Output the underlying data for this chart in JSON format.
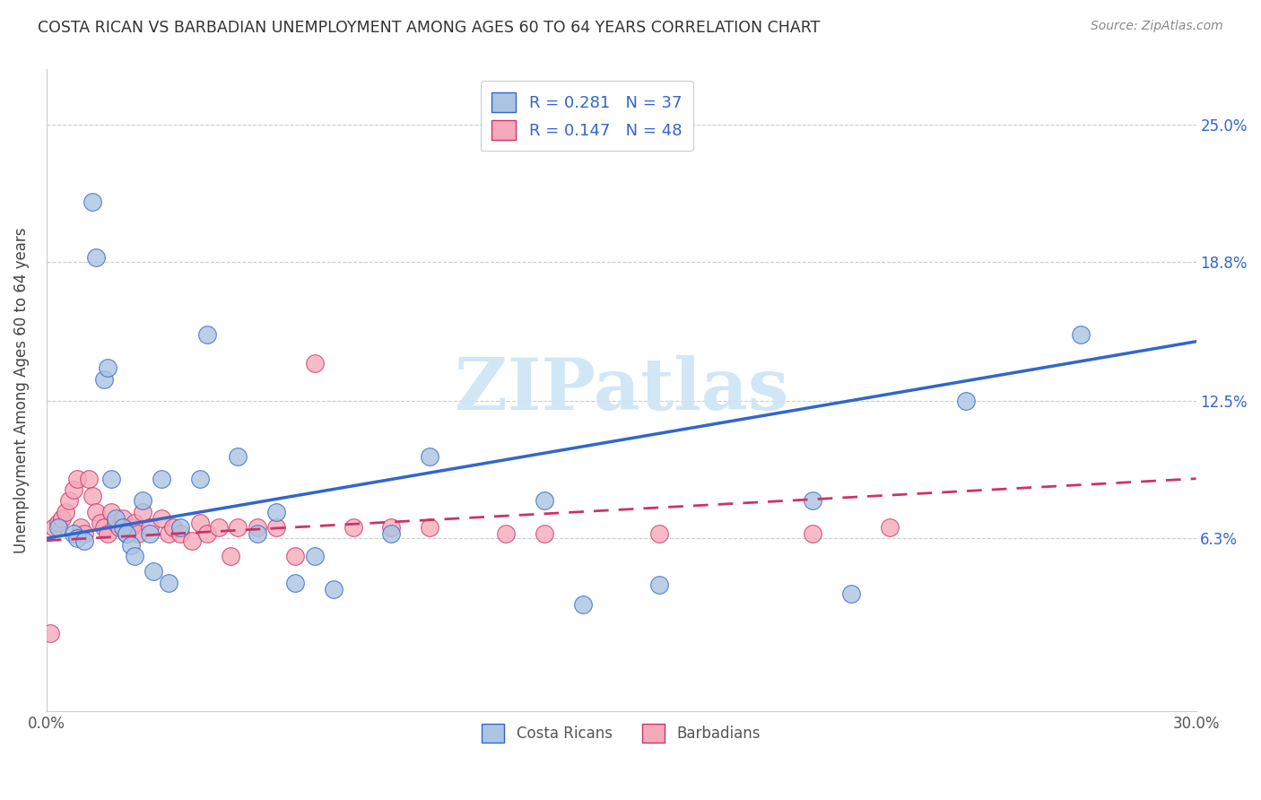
{
  "title": "COSTA RICAN VS BARBADIAN UNEMPLOYMENT AMONG AGES 60 TO 64 YEARS CORRELATION CHART",
  "source": "Source: ZipAtlas.com",
  "ylabel": "Unemployment Among Ages 60 to 64 years",
  "xlim": [
    0.0,
    0.3
  ],
  "ylim": [
    -0.015,
    0.275
  ],
  "xticks": [
    0.0,
    0.05,
    0.1,
    0.15,
    0.2,
    0.25,
    0.3
  ],
  "xticklabels": [
    "0.0%",
    "",
    "",
    "",
    "",
    "",
    "30.0%"
  ],
  "ytick_values": [
    0.063,
    0.125,
    0.188,
    0.25
  ],
  "ytick_labels": [
    "6.3%",
    "12.5%",
    "18.8%",
    "25.0%"
  ],
  "costa_rican_R": 0.281,
  "costa_rican_N": 37,
  "barbadian_R": 0.147,
  "barbadian_N": 48,
  "blue_color": "#aac4e2",
  "pink_color": "#f5aabb",
  "blue_line_color": "#3366cc",
  "pink_line_color": "#cc3366",
  "watermark_color": "#cce5f5",
  "grid_color": "#cccccc",
  "costa_rican_x": [
    0.003,
    0.007,
    0.008,
    0.01,
    0.012,
    0.013,
    0.015,
    0.016,
    0.017,
    0.018,
    0.02,
    0.021,
    0.022,
    0.023,
    0.025,
    0.027,
    0.028,
    0.03,
    0.032,
    0.035,
    0.04,
    0.042,
    0.05,
    0.055,
    0.06,
    0.065,
    0.07,
    0.075,
    0.09,
    0.1,
    0.13,
    0.14,
    0.16,
    0.2,
    0.21,
    0.24,
    0.27
  ],
  "costa_rican_y": [
    0.068,
    0.065,
    0.063,
    0.062,
    0.215,
    0.19,
    0.135,
    0.14,
    0.09,
    0.072,
    0.068,
    0.065,
    0.06,
    0.055,
    0.08,
    0.065,
    0.048,
    0.09,
    0.043,
    0.068,
    0.09,
    0.155,
    0.1,
    0.065,
    0.075,
    0.043,
    0.055,
    0.04,
    0.065,
    0.1,
    0.08,
    0.033,
    0.042,
    0.08,
    0.038,
    0.125,
    0.155
  ],
  "barbadian_x": [
    0.001,
    0.002,
    0.003,
    0.004,
    0.005,
    0.006,
    0.007,
    0.008,
    0.009,
    0.01,
    0.011,
    0.012,
    0.013,
    0.014,
    0.015,
    0.016,
    0.017,
    0.018,
    0.019,
    0.02,
    0.021,
    0.022,
    0.023,
    0.024,
    0.025,
    0.027,
    0.03,
    0.032,
    0.033,
    0.035,
    0.038,
    0.04,
    0.042,
    0.045,
    0.048,
    0.05,
    0.055,
    0.06,
    0.065,
    0.07,
    0.08,
    0.09,
    0.1,
    0.12,
    0.13,
    0.16,
    0.2,
    0.22
  ],
  "barbadian_y": [
    0.02,
    0.068,
    0.07,
    0.072,
    0.075,
    0.08,
    0.085,
    0.09,
    0.068,
    0.065,
    0.09,
    0.082,
    0.075,
    0.07,
    0.068,
    0.065,
    0.075,
    0.07,
    0.068,
    0.072,
    0.065,
    0.068,
    0.07,
    0.065,
    0.075,
    0.068,
    0.072,
    0.065,
    0.068,
    0.065,
    0.062,
    0.07,
    0.065,
    0.068,
    0.055,
    0.068,
    0.068,
    0.068,
    0.055,
    0.142,
    0.068,
    0.068,
    0.068,
    0.065,
    0.065,
    0.065,
    0.065,
    0.068
  ]
}
